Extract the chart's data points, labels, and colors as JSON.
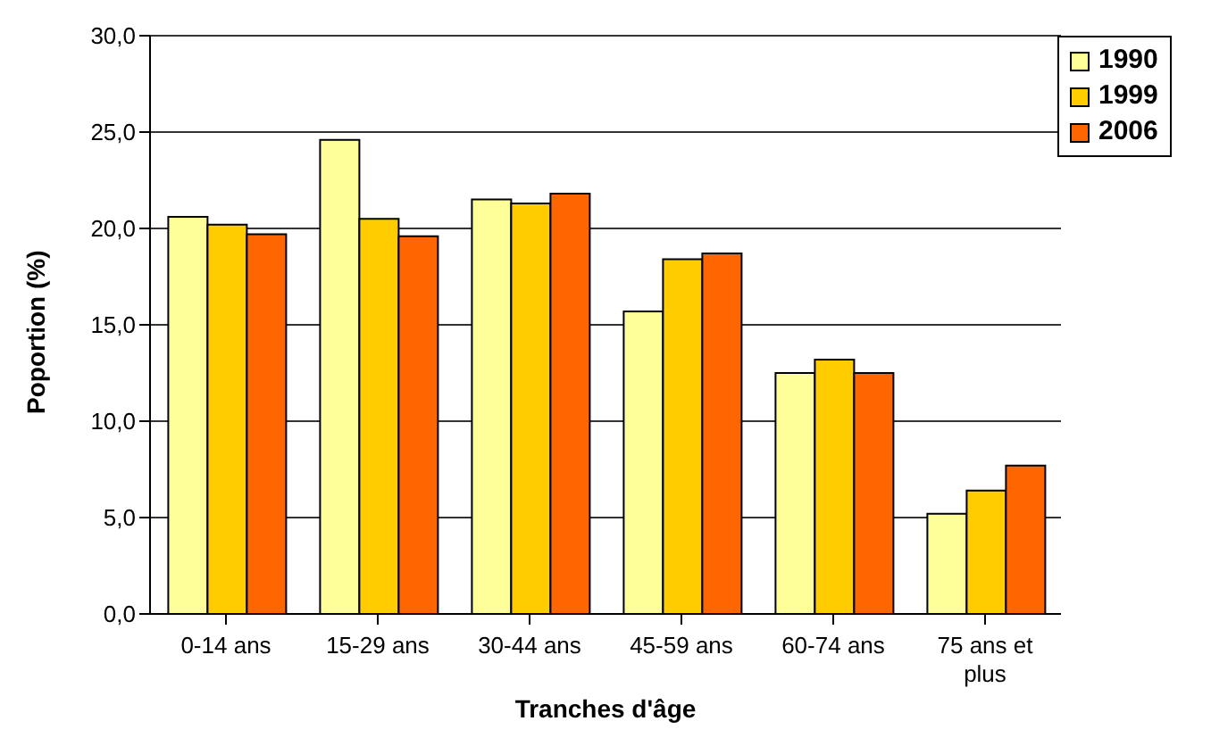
{
  "chart_data": {
    "type": "bar",
    "xlabel": "Tranches d'âge",
    "ylabel": "Poportion (%)",
    "categories": [
      "0-14 ans",
      "15-29 ans",
      "30-44 ans",
      "45-59 ans",
      "60-74 ans",
      "75 ans et plus"
    ],
    "series": [
      {
        "name": "1990",
        "color": "#ffff99",
        "values": [
          20.6,
          24.6,
          21.5,
          15.7,
          12.5,
          5.2
        ]
      },
      {
        "name": "1999",
        "color": "#ffcc00",
        "values": [
          20.2,
          20.5,
          21.3,
          18.4,
          13.2,
          6.4
        ]
      },
      {
        "name": "2006",
        "color": "#ff6600",
        "values": [
          19.7,
          19.6,
          21.8,
          18.7,
          12.5,
          7.7
        ]
      }
    ],
    "ylim": [
      0,
      30
    ],
    "yticks": [
      {
        "value": 0,
        "label": "0,0"
      },
      {
        "value": 5,
        "label": "5,0"
      },
      {
        "value": 10,
        "label": "10,0"
      },
      {
        "value": 15,
        "label": "15,0"
      },
      {
        "value": 20,
        "label": "20,0"
      },
      {
        "value": 25,
        "label": "25,0"
      },
      {
        "value": 30,
        "label": "30,0"
      }
    ],
    "grid": "y",
    "legend": "top right"
  }
}
